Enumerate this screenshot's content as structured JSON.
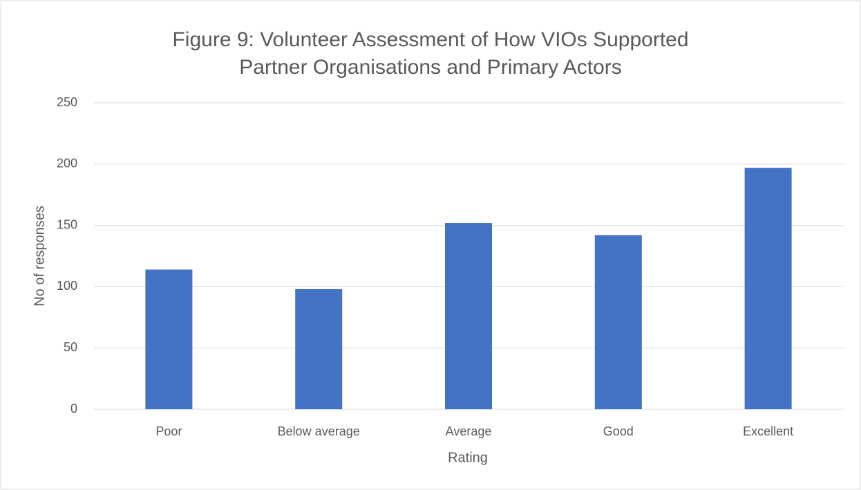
{
  "chart_data": {
    "type": "bar",
    "title": "Figure 9: Volunteer Assessment of How VIOs Supported Partner Organisations and Primary Actors",
    "xlabel": "Rating",
    "ylabel": "No of responses",
    "categories": [
      "Poor",
      "Below average",
      "Average",
      "Good",
      "Excellent"
    ],
    "values": [
      114,
      98,
      152,
      142,
      197
    ],
    "color": "#4472c4",
    "ylim": [
      0,
      250
    ],
    "yticks": [
      0,
      50,
      100,
      150,
      200,
      250
    ],
    "grid": true
  }
}
